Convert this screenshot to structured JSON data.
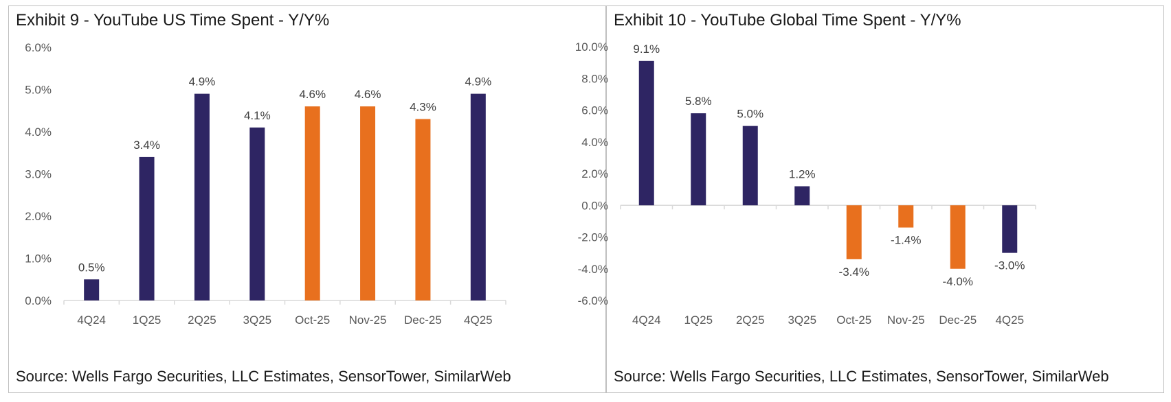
{
  "colors": {
    "navy": "#2e2563",
    "orange": "#e8701e",
    "axis": "#d9d9d9"
  },
  "chart_data": [
    {
      "type": "bar",
      "title": "Exhibit 9 - YouTube US Time Spent - Y/Y%",
      "source": "Source: Wells Fargo Securities, LLC Estimates, SensorTower, SimilarWeb",
      "categories": [
        "4Q24",
        "1Q25",
        "2Q25",
        "3Q25",
        "Oct-25",
        "Nov-25",
        "Dec-25",
        "4Q25"
      ],
      "values": [
        0.5,
        3.4,
        4.9,
        4.1,
        4.6,
        4.6,
        4.3,
        4.9
      ],
      "data_labels": [
        "0.5%",
        "3.4%",
        "4.9%",
        "4.1%",
        "4.6%",
        "4.6%",
        "4.3%",
        "4.9%"
      ],
      "bar_colors": [
        "navy",
        "navy",
        "navy",
        "navy",
        "orange",
        "orange",
        "orange",
        "navy"
      ],
      "ylim": [
        0,
        6
      ],
      "yticks": [
        0,
        1,
        2,
        3,
        4,
        5,
        6
      ],
      "ytick_labels": [
        "0.0%",
        "1.0%",
        "2.0%",
        "3.0%",
        "4.0%",
        "5.0%",
        "6.0%"
      ],
      "xlabel": "",
      "ylabel": "",
      "grid": false
    },
    {
      "type": "bar",
      "title": "Exhibit 10 - YouTube Global Time Spent - Y/Y%",
      "source": "Source: Wells Fargo Securities, LLC Estimates, SensorTower, SimilarWeb",
      "categories": [
        "4Q24",
        "1Q25",
        "2Q25",
        "3Q25",
        "Oct-25",
        "Nov-25",
        "Dec-25",
        "4Q25"
      ],
      "values": [
        9.1,
        5.8,
        5.0,
        1.2,
        -3.4,
        -1.4,
        -4.0,
        -3.0
      ],
      "data_labels": [
        "9.1%",
        "5.8%",
        "5.0%",
        "1.2%",
        "-3.4%",
        "-1.4%",
        "-4.0%",
        "-3.0%"
      ],
      "bar_colors": [
        "navy",
        "navy",
        "navy",
        "navy",
        "orange",
        "orange",
        "orange",
        "navy"
      ],
      "ylim": [
        -6,
        10
      ],
      "yticks": [
        -6,
        -4,
        -2,
        0,
        2,
        4,
        6,
        8,
        10
      ],
      "ytick_labels": [
        "-6.0%",
        "-4.0%",
        "-2.0%",
        "0.0%",
        "2.0%",
        "4.0%",
        "6.0%",
        "8.0%",
        "10.0%"
      ],
      "xlabel": "",
      "ylabel": "",
      "grid": false
    }
  ]
}
